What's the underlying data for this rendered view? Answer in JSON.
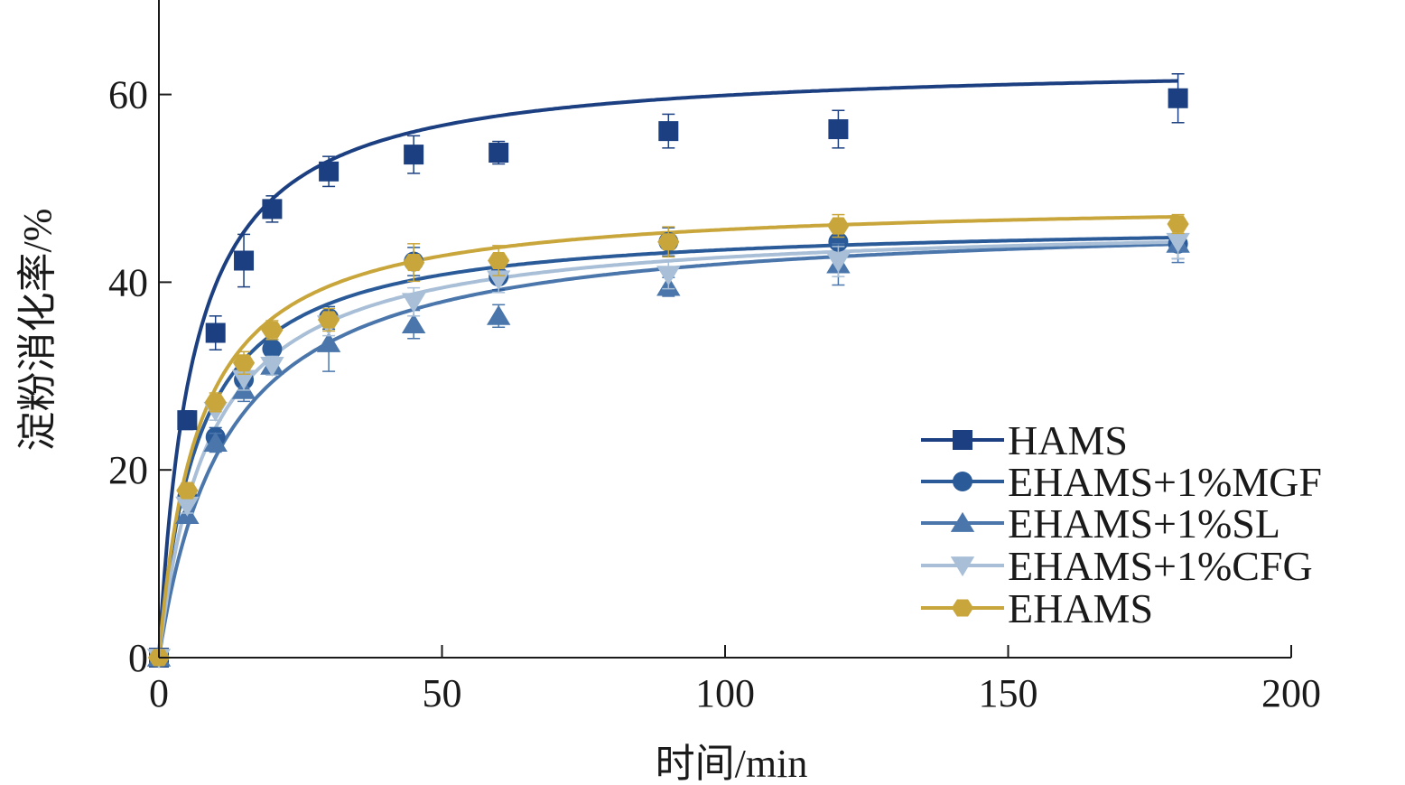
{
  "chart_data": {
    "type": "scatter",
    "title": "",
    "xlabel": "时间/min",
    "ylabel": "淀粉消化率/%",
    "xlim": [
      0,
      200
    ],
    "ylim": [
      0,
      70
    ],
    "xticks": [
      0,
      50,
      100,
      150,
      200
    ],
    "yticks": [
      0,
      20,
      40,
      60
    ],
    "grid": false,
    "legend_placement": "bottom-right",
    "x": [
      0,
      5,
      10,
      15,
      20,
      30,
      45,
      60,
      90,
      120,
      180
    ],
    "series": [
      {
        "name": "HAMS",
        "marker": "square",
        "color": "#1b3f80",
        "values": [
          0,
          25.3,
          34.6,
          42.3,
          47.8,
          51.8,
          53.6,
          53.8,
          56.1,
          56.3,
          59.6
        ],
        "err": [
          0.3,
          1.0,
          1.8,
          2.8,
          1.4,
          1.6,
          2.0,
          1.2,
          1.8,
          2.0,
          2.6
        ],
        "fit": {
          "model": "A*t/(k+t)",
          "A": 63.5,
          "k": 6
        }
      },
      {
        "name": "EHAMS+1%MGF",
        "marker": "circle",
        "color": "#2a5a98",
        "values": [
          0,
          17.1,
          23.5,
          29.6,
          32.9,
          36.2,
          42.2,
          40.6,
          44.3,
          44.3,
          44.1
        ],
        "err": [
          0.3,
          0.8,
          1.0,
          1.2,
          1.0,
          1.2,
          1.5,
          1.4,
          1.5,
          1.6,
          1.6
        ],
        "fit": {
          "model": "A*t/(k+t)",
          "A": 46.5,
          "k": 7
        }
      },
      {
        "name": "EHAMS+1%SL",
        "marker": "triangle-up",
        "color": "#4a76ab",
        "values": [
          0,
          15.2,
          22.9,
          28.5,
          31.1,
          33.5,
          35.5,
          36.4,
          39.5,
          41.9,
          44.1
        ],
        "err": [
          0.3,
          0.8,
          1.0,
          1.2,
          1.0,
          3.0,
          1.5,
          1.2,
          1.0,
          2.2,
          2.0
        ],
        "fit": {
          "model": "A*t/(k+t)",
          "A": 47,
          "k": 12
        }
      },
      {
        "name": "EHAMS+1%CFG",
        "marker": "triangle-down",
        "color": "#a8bfd7",
        "values": [
          0,
          16.2,
          26.3,
          29.7,
          31.1,
          35.5,
          37.9,
          40.3,
          40.8,
          42.2,
          44.3
        ],
        "err": [
          0.3,
          0.8,
          1.0,
          1.2,
          1.0,
          1.2,
          1.5,
          1.4,
          1.5,
          1.6,
          1.8
        ],
        "fit": {
          "model": "A*t/(k+t)",
          "A": 46.5,
          "k": 9
        }
      },
      {
        "name": "EHAMS",
        "marker": "hexagon",
        "color": "#c9a63b",
        "values": [
          0,
          17.8,
          27.2,
          31.4,
          34.9,
          36.0,
          42.1,
          42.3,
          44.3,
          46.0,
          46.2
        ],
        "err": [
          0.3,
          0.8,
          1.0,
          1.2,
          1.0,
          1.2,
          2.0,
          1.6,
          1.6,
          1.2,
          1.0
        ],
        "fit": {
          "model": "A*t/(k+t)",
          "A": 48.8,
          "k": 7
        }
      }
    ]
  }
}
